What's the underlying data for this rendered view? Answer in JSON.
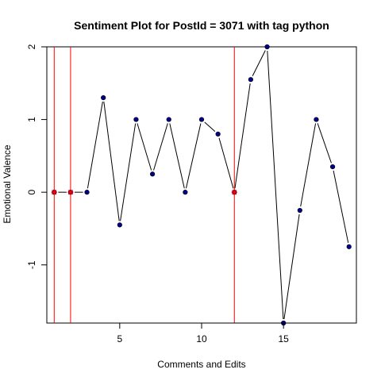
{
  "chart_data": {
    "type": "line",
    "title": "Sentiment Plot for PostId =  3071  with tag  python",
    "xlabel": "Comments and Edits",
    "ylabel": "Emotional Valence",
    "xlim": [
      0.55,
      19.45
    ],
    "ylim": [
      -1.8,
      2.0
    ],
    "x_ticks": [
      5,
      10,
      15
    ],
    "y_ticks": [
      -1,
      0,
      1,
      2
    ],
    "series": [
      {
        "x": [
          1,
          2,
          3,
          4,
          5,
          6,
          7,
          8,
          9,
          10,
          11,
          12,
          13,
          14,
          15,
          16,
          17,
          18,
          19
        ],
        "y": [
          0,
          0,
          0,
          1.3,
          -0.45,
          1.0,
          0.25,
          1.0,
          0,
          1.0,
          0.8,
          0,
          1.55,
          2.0,
          -1.8,
          -0.25,
          1.0,
          0.35,
          -0.75
        ]
      }
    ],
    "edit_markers_x": [
      1,
      2,
      12
    ],
    "grid": false,
    "legend": "none",
    "colors": {
      "line": "#000000",
      "point": "#00008b",
      "edit_line": "#ff0000",
      "edit_marker": "#ff0000",
      "axis": "#000000"
    }
  }
}
